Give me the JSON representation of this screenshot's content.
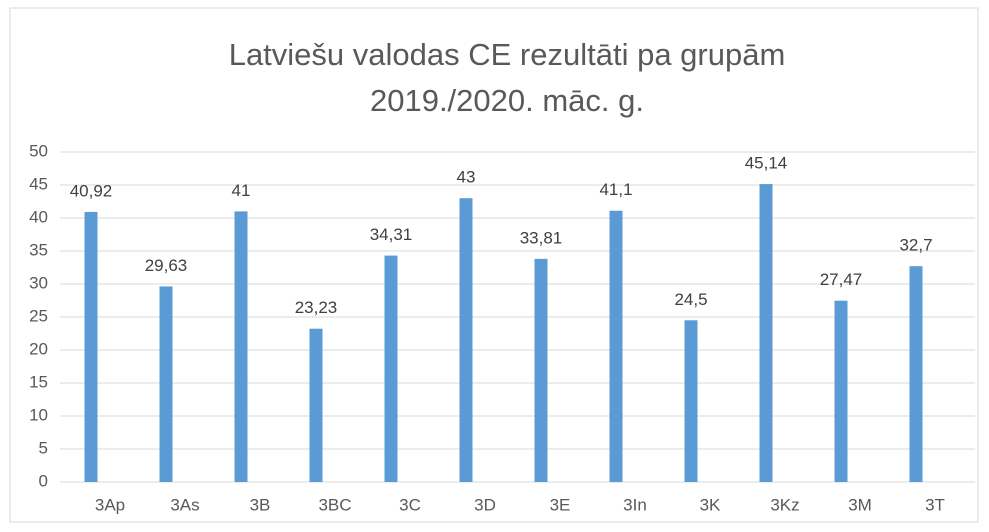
{
  "chart_data": {
    "type": "bar",
    "title": [
      "Latviešu valodas  CE rezultāti pa grupām",
      "2019./2020. māc. g."
    ],
    "categories": [
      "3Ap",
      "3As",
      "3B",
      "3BC",
      "3C",
      "3D",
      "3E",
      "3In",
      "3K",
      "3Kz",
      "3M",
      "3T"
    ],
    "values": [
      40.92,
      29.63,
      41,
      23.23,
      34.31,
      43,
      33.81,
      41.1,
      24.5,
      45.14,
      27.47,
      32.7
    ],
    "value_labels": [
      "40,92",
      "29,63",
      "41",
      "23,23",
      "34,31",
      "43",
      "33,81",
      "41,1",
      "24,5",
      "45,14",
      "27,47",
      "32,7"
    ],
    "color": "#5b9bd5",
    "ylim": [
      0,
      50
    ],
    "yticks": [
      0,
      5,
      10,
      15,
      20,
      25,
      30,
      35,
      40,
      45,
      50
    ],
    "grid": true
  }
}
